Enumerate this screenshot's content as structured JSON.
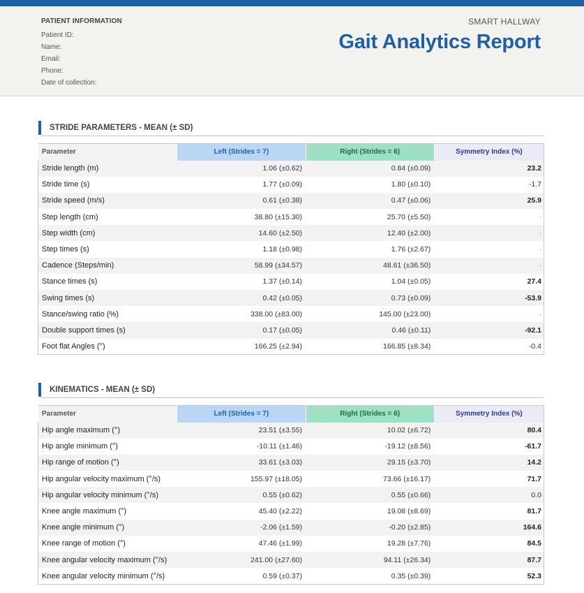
{
  "patient_info": {
    "title": "PATIENT INFORMATION",
    "fields": [
      "Patient ID:",
      "Name:",
      "Email:",
      "Phone:",
      "Date of collection:"
    ]
  },
  "brand": {
    "subtitle": "SMART HALLWAY",
    "title": "Gait Analytics Report"
  },
  "columns": {
    "parameter": "Parameter",
    "left": "Left (Strides = 7)",
    "right": "Right (Strides = 6)",
    "symmetry": "Symmetry Index (%)"
  },
  "stride": {
    "title": "STRIDE PARAMETERS - MEAN (± SD)",
    "rows": [
      {
        "param": "Stride length (m)",
        "left": "1.06  (±0.62)",
        "right": "0.84  (±0.09)",
        "si": "23.2",
        "bold": true
      },
      {
        "param": "Stride time (s)",
        "left": "1.77  (±0.09)",
        "right": "1.80  (±0.10)",
        "si": "-1.7",
        "bold": false
      },
      {
        "param": "Stride speed (m/s)",
        "left": "0.61  (±0.38)",
        "right": "0.47  (±0.06)",
        "si": "25.9",
        "bold": true
      },
      {
        "param": "Step length (cm)",
        "left": "38.80  (±15.30)",
        "right": "25.70  (±5.50)",
        "si": "-",
        "bold": false
      },
      {
        "param": "Step width (cm)",
        "left": "14.60  (±2.50)",
        "right": "12.40  (±2.00)",
        "si": "-",
        "bold": false
      },
      {
        "param": "Step times (s)",
        "left": "1.18  (±0.98)",
        "right": "1.76  (±2.67)",
        "si": "-",
        "bold": false
      },
      {
        "param": "Cadence (Steps/min)",
        "left": "58.99  (±34.57)",
        "right": "48.61  (±36.50)",
        "si": "-",
        "bold": false
      },
      {
        "param": "Stance times (s)",
        "left": "1.37  (±0.14)",
        "right": "1.04  (±0.05)",
        "si": "27.4",
        "bold": true
      },
      {
        "param": "Swing times (s)",
        "left": "0.42  (±0.05)",
        "right": "0.73  (±0.09)",
        "si": "-53.9",
        "bold": true
      },
      {
        "param": "Stance/swing ratio (%)",
        "left": "338.00  (±83.00)",
        "right": "145.00  (±23.00)",
        "si": "-",
        "bold": false
      },
      {
        "param": "Double support times (s)",
        "left": "0.17  (±0.05)",
        "right": "0.46  (±0.11)",
        "si": "-92.1",
        "bold": true
      },
      {
        "param": "Foot flat Angles (°)",
        "left": "166.25  (±2.94)",
        "right": "166.85  (±8.34)",
        "si": "-0.4",
        "bold": false
      }
    ]
  },
  "kinematics": {
    "title": "KINEMATICS - MEAN (± SD)",
    "rows": [
      {
        "param": "Hip angle maximum (°)",
        "left": "23.51  (±3.55)",
        "right": "10.02  (±6.72)",
        "si": "80.4",
        "bold": true
      },
      {
        "param": "Hip angle minimum (°)",
        "left": "-10.11  (±1.46)",
        "right": "-19.12  (±8.56)",
        "si": "-61.7",
        "bold": true
      },
      {
        "param": "Hip range of motion (°)",
        "left": "33.61  (±3.03)",
        "right": "29.15  (±3.70)",
        "si": "14.2",
        "bold": true
      },
      {
        "param": "Hip angular velocity maximum (°/s)",
        "left": "155.97  (±18.05)",
        "right": "73.66  (±16.17)",
        "si": "71.7",
        "bold": true
      },
      {
        "param": "Hip angular velocity minimum (°/s)",
        "left": "0.55  (±0.62)",
        "right": "0.55  (±0.66)",
        "si": "0.0",
        "bold": false
      },
      {
        "param": "Knee angle maximum (°)",
        "left": "45.40  (±2.22)",
        "right": "19.08  (±8.69)",
        "si": "81.7",
        "bold": true
      },
      {
        "param": "Knee angle minimum (°)",
        "left": "-2.06  (±1.59)",
        "right": "-0.20  (±2.85)",
        "si": "164.6",
        "bold": true
      },
      {
        "param": "Knee range of motion (°)",
        "left": "47.46  (±1.99)",
        "right": "19.28  (±7.76)",
        "si": "84.5",
        "bold": true
      },
      {
        "param": "Knee angular velocity maximum (°/s)",
        "left": "241.00  (±27.60)",
        "right": "94.11  (±26.34)",
        "si": "87.7",
        "bold": true
      },
      {
        "param": "Knee angular velocity minimum (°/s)",
        "left": "0.59  (±0.37)",
        "right": "0.35  (±0.39)",
        "si": "52.3",
        "bold": true
      }
    ]
  }
}
